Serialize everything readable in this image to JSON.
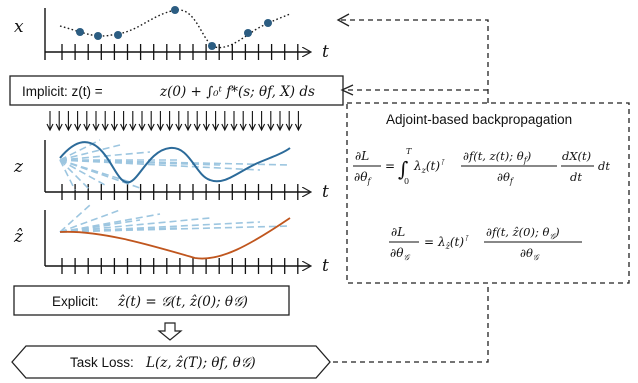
{
  "top_plot": {
    "y_axis_label": "x",
    "x_axis_label": "t"
  },
  "implicit_box": {
    "label": "Implicit: z(t) = ",
    "formula_tail": "z(0) + ∫₀ᵗ f*(s; θf, X) ds"
  },
  "latent_plot": {
    "y_axis_label": "z",
    "x_axis_label": "t"
  },
  "explicit_plot": {
    "y_axis_label": "ẑ",
    "x_axis_label": "t"
  },
  "explicit_box": {
    "label": "Explicit: ",
    "formula_tail": "ẑ(t) = 𝒢(t, ẑ(0); θ𝒢)"
  },
  "task_loss_box": {
    "label": "Task Loss: ",
    "formula_tail": "L(z, ẑ(T); θf, θ𝒢)"
  },
  "adjoint_panel": {
    "title": "Adjoint-based backpropagation"
  },
  "colors": {
    "dot": "#2c5d82",
    "curve_z": "#2c6b9a",
    "dash_light": "#9dc6e0",
    "curve_zhat": "#c0561e",
    "border": "#222222"
  }
}
